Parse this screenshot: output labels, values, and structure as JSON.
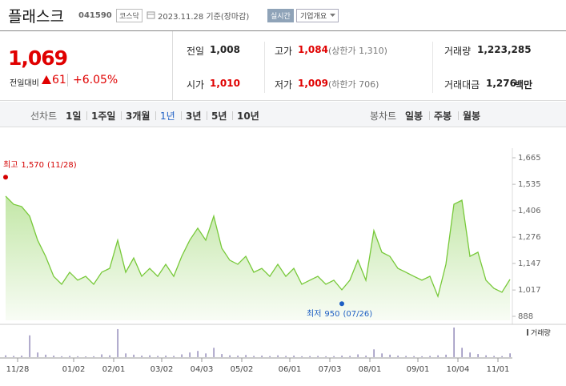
{
  "header": {
    "title": "플래스크",
    "code": "041590",
    "market": "코스닥",
    "date": "2023.11.28 기준(장마감)",
    "realtime": "실시간",
    "overview": "기업개요"
  },
  "price": {
    "current": "1,069",
    "change_label": "전일대비",
    "change": "61",
    "change_rate": "+6.05%"
  },
  "quote": {
    "rows": [
      [
        {
          "label": "전일",
          "value": "1,008"
        },
        {
          "label": "고가",
          "value": "1,084",
          "note": "(상한가 1,310)"
        },
        {
          "label": "거래량",
          "value": "1,223,285"
        }
      ],
      [
        {
          "label": "시가",
          "value": "1,010"
        },
        {
          "label": "저가",
          "value": "1,009",
          "note": "(하한가 706)"
        },
        {
          "label": "거래대금",
          "value": "1,276",
          "unit": "백만"
        }
      ]
    ]
  },
  "line_tabs": {
    "label": "선차트",
    "items": [
      "1일",
      "1주일",
      "3개월",
      "1년",
      "3년",
      "5년",
      "10년"
    ],
    "selected": 3
  },
  "candle_tabs": {
    "label": "봉차트",
    "items": [
      "일봉",
      "주봉",
      "월봉"
    ]
  },
  "chart_data": {
    "type": "line",
    "color": "#78c93a",
    "categories": [
      "11/28",
      null,
      null,
      null,
      null,
      null,
      null,
      "01/02",
      null,
      null,
      null,
      null,
      "02/01",
      null,
      null,
      null,
      null,
      null,
      "03/02",
      null,
      null,
      null,
      null,
      "04/03",
      null,
      null,
      null,
      null,
      "05/02",
      null,
      null,
      null,
      null,
      null,
      "06/01",
      null,
      null,
      null,
      null,
      "07/03",
      null,
      null,
      null,
      null,
      "08/01",
      null,
      null,
      null,
      null,
      null,
      "09/01",
      null,
      null,
      null,
      null,
      "10/04",
      null,
      null,
      null,
      null,
      "11/01",
      null,
      null,
      null
    ],
    "values": [
      1477,
      1437,
      1426,
      1379,
      1261,
      1182,
      1084,
      1045,
      1104,
      1065,
      1084,
      1045,
      1104,
      1123,
      1261,
      1104,
      1174,
      1084,
      1123,
      1084,
      1143,
      1084,
      1182,
      1261,
      1320,
      1261,
      1379,
      1222,
      1163,
      1143,
      1182,
      1104,
      1123,
      1084,
      1143,
      1084,
      1123,
      1045,
      1065,
      1084,
      1045,
      1065,
      1018,
      1065,
      1163,
      1065,
      1308,
      1202,
      1182,
      1123,
      1104,
      1084,
      1065,
      1084,
      986,
      1143,
      1437,
      1457,
      1182,
      1202,
      1065,
      1025,
      1006,
      1069
    ],
    "ylim": [
      888,
      1665
    ],
    "yticks": [
      {
        "value": 1665,
        "label": "1,665"
      },
      {
        "value": 1535,
        "label": "1,535"
      },
      {
        "value": 1406,
        "label": "1,406"
      },
      {
        "value": 1276,
        "label": "1,276"
      },
      {
        "value": 1147,
        "label": "1,147"
      },
      {
        "value": 1017,
        "label": "1,017"
      },
      {
        "value": 888,
        "label": "888"
      }
    ],
    "grid": false,
    "high": {
      "label": "최고",
      "value": 1570,
      "value_label": "1,570",
      "date": "(11/28)",
      "color": "#d40000"
    },
    "low": {
      "label": "최저",
      "value": 950,
      "date": "(07/26)",
      "color": "#1e5fc4"
    },
    "volume": {
      "name": "거래량",
      "color": "#8c83b5",
      "values": [
        600000,
        400000,
        500000,
        7000000,
        1500000,
        800000,
        500000,
        300000,
        400000,
        300000,
        250000,
        300000,
        900000,
        600000,
        9000000,
        1200000,
        800000,
        500000,
        600000,
        400000,
        500000,
        400000,
        900000,
        1500000,
        2000000,
        1200000,
        3000000,
        1000000,
        600000,
        500000,
        700000,
        400000,
        500000,
        350000,
        600000,
        400000,
        500000,
        300000,
        350000,
        400000,
        300000,
        350000,
        500000,
        400000,
        900000,
        500000,
        2500000,
        1200000,
        800000,
        500000,
        400000,
        350000,
        300000,
        400000,
        600000,
        800000,
        9500000,
        3000000,
        1500000,
        1000000,
        600000,
        400000,
        350000,
        1223285
      ]
    }
  }
}
